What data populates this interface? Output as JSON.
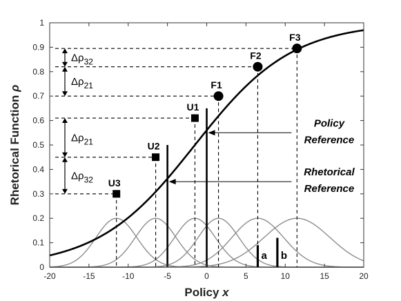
{
  "chart_data": {
    "type": "line",
    "xlabel": "Policy x",
    "ylabel": "Rhetorical Function ρ",
    "xlim": [
      -20,
      20
    ],
    "ylim": [
      0,
      1
    ],
    "xticks": [
      -20,
      -15,
      -10,
      -5,
      0,
      5,
      10,
      15,
      20
    ],
    "yticks": [
      0,
      0.1,
      0.2,
      0.3,
      0.4,
      0.5,
      0.6,
      0.7,
      0.8,
      0.9,
      1
    ],
    "ytick_labels": [
      "0",
      "0.1",
      "0.2",
      "0.3",
      "0.4",
      "0.5",
      "0.6",
      "0.7",
      "0.8",
      "0.9",
      "1"
    ],
    "grid": false,
    "series": [
      {
        "kind": "logistic",
        "midpoint": -1.5,
        "scale": 6.2,
        "color": "#000000"
      }
    ],
    "points": [
      {
        "label": "U3",
        "x": -11.5,
        "y": 0.3,
        "marker": "square"
      },
      {
        "label": "U2",
        "x": -6.5,
        "y": 0.45,
        "marker": "square"
      },
      {
        "label": "U1",
        "x": -1.5,
        "y": 0.61,
        "marker": "square"
      },
      {
        "label": "F1",
        "x": 1.5,
        "y": 0.7,
        "marker": "circle"
      },
      {
        "label": "F2",
        "x": 6.5,
        "y": 0.82,
        "marker": "circle"
      },
      {
        "label": "F3",
        "x": 11.5,
        "y": 0.895,
        "marker": "circle"
      }
    ],
    "gaussians": [
      {
        "center": -11.5,
        "peak": 0.2,
        "sigma": 2.6
      },
      {
        "center": -6.5,
        "peak": 0.2,
        "sigma": 2.6
      },
      {
        "center": -1.5,
        "peak": 0.2,
        "sigma": 2.6
      },
      {
        "center": 1.5,
        "peak": 0.2,
        "sigma": 2.6
      },
      {
        "center": 6.5,
        "peak": 0.2,
        "sigma": 3.3
      },
      {
        "center": 11.5,
        "peak": 0.2,
        "sigma": 4.2
      }
    ],
    "gaussian_color": "#8c8c8c",
    "reference_lines": [
      {
        "name": "rhetorical",
        "x": -5.0,
        "y": 0.5
      },
      {
        "name": "policy",
        "x": 0.0,
        "y": 0.65
      }
    ],
    "bars": [
      {
        "label": "a",
        "x": 6.5,
        "height": 0.09
      },
      {
        "label": "b",
        "x": 9.0,
        "height": 0.12
      }
    ],
    "delta_brackets": [
      {
        "label_main": "Δρ",
        "label_sub": "32",
        "y_from": 0.82,
        "y_to": 0.895
      },
      {
        "label_main": "Δρ",
        "label_sub": "21",
        "y_from": 0.7,
        "y_to": 0.82
      },
      {
        "label_main": "Δρ",
        "label_sub": "21",
        "y_from": 0.45,
        "y_to": 0.61
      },
      {
        "label_main": "Δρ",
        "label_sub": "32",
        "y_from": 0.3,
        "y_to": 0.45
      }
    ],
    "annotations": [
      {
        "name": "policy",
        "line1": "Policy",
        "line2": "Reference",
        "y": 0.55
      },
      {
        "name": "rhetorical",
        "line1": "Rhetorical",
        "line2": "Reference",
        "y": 0.35
      }
    ]
  }
}
